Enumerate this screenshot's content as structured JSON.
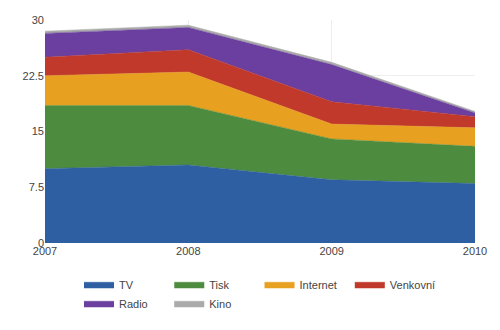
{
  "chart_data": {
    "type": "area",
    "stacked": true,
    "x": [
      2007,
      2008,
      2009,
      2010
    ],
    "series": [
      {
        "name": "TV",
        "color": "#2e5fa3",
        "values": [
          10.0,
          10.5,
          8.5,
          8.0
        ]
      },
      {
        "name": "Tisk",
        "color": "#4d8c3f",
        "values": [
          8.5,
          8.0,
          5.5,
          5.0
        ]
      },
      {
        "name": "Internet",
        "color": "#e8a020",
        "values": [
          4.0,
          4.5,
          2.0,
          2.5
        ]
      },
      {
        "name": "Venkovní",
        "color": "#c0392b",
        "values": [
          2.5,
          3.0,
          3.0,
          1.5
        ]
      },
      {
        "name": "Radio",
        "color": "#6b3fa0",
        "values": [
          3.2,
          3.0,
          5.0,
          0.5
        ]
      },
      {
        "name": "Kino",
        "color": "#aaaaaa",
        "values": [
          0.3,
          0.3,
          0.3,
          0.2
        ]
      }
    ],
    "xlim": [
      2007,
      2010
    ],
    "xticks": [
      2007,
      2008,
      2009,
      2010
    ],
    "ylim": [
      0,
      30
    ],
    "yticks": [
      0,
      7.5,
      15,
      22.5,
      30
    ],
    "grid": true,
    "legend": "bottom"
  }
}
